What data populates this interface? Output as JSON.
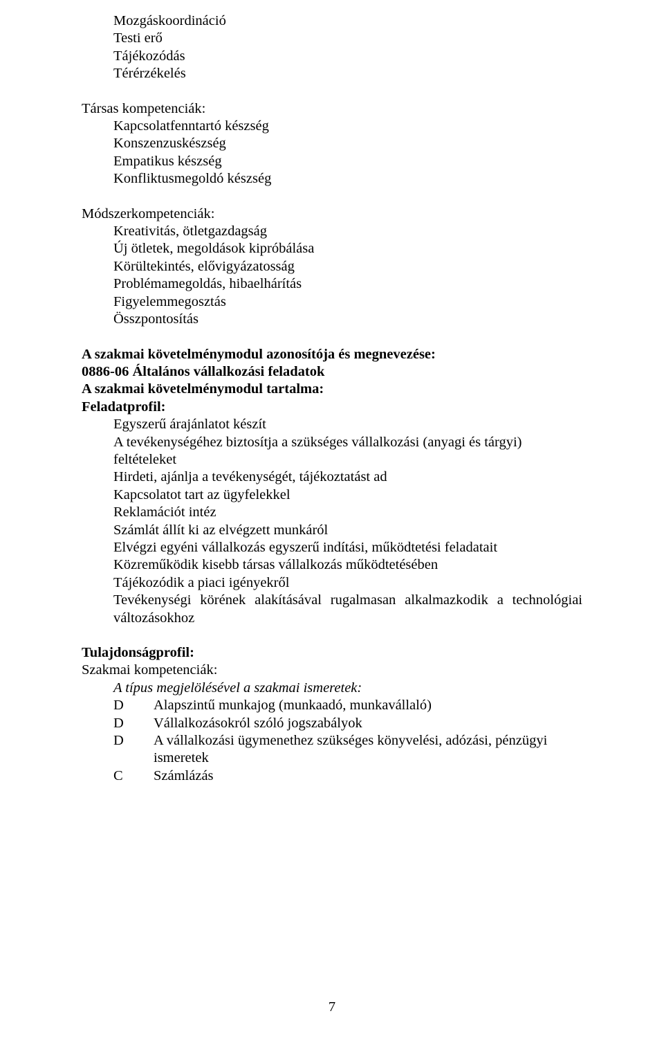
{
  "fonts": {
    "family": "Times New Roman",
    "body_size_pt": 15,
    "color": "#000000",
    "background": "#ffffff"
  },
  "top_list": [
    "Mozgáskoordináció",
    "Testi erő",
    "Tájékozódás",
    "Térérzékelés"
  ],
  "tarsas": {
    "heading": "Társas kompetenciák:",
    "items": [
      "Kapcsolatfenntartó készség",
      "Konszenzuskészség",
      "Empatikus készség",
      "Konfliktusmegoldó készség"
    ]
  },
  "modszer": {
    "heading": "Módszerkompetenciák:",
    "items": [
      "Kreativitás, ötletgazdagság",
      "Új ötletek, megoldások kipróbálása",
      "Körültekintés, elővigyázatosság",
      "Problémamegoldás, hibaelhárítás",
      "Figyelemmegosztás",
      "Összpontosítás"
    ]
  },
  "modul": {
    "line1": "A szakmai követelménymodul azonosítója és megnevezése:",
    "line2": "0886-06  Általános vállalkozási feladatok",
    "line3": "A szakmai követelménymodul tartalma:",
    "feladatprofil_heading": "Feladatprofil:",
    "feladatprofil_items": [
      "Egyszerű árajánlatot készít",
      "A tevékenységéhez biztosítja a szükséges vállalkozási (anyagi és tárgyi) feltételeket",
      "Hirdeti, ajánlja a tevékenységét, tájékoztatást ad",
      "Kapcsolatot tart az ügyfelekkel",
      "Reklamációt intéz",
      "Számlát állít ki az elvégzett munkáról",
      "Elvégzi egyéni vállalkozás egyszerű indítási, működtetési feladatait",
      "Közreműködik kisebb társas vállalkozás működtetésében",
      "Tájékozódik a piaci igényekről",
      "Tevékenységi körének alakításával rugalmasan alkalmazkodik a technológiai változásokhoz"
    ]
  },
  "tulajdonsag": {
    "heading": "Tulajdonságprofil:",
    "szakmai_heading": "Szakmai kompetenciák:",
    "ismeretek_heading": "A típus megjelölésével a szakmai ismeretek:",
    "rows": [
      {
        "letter": "D",
        "text": "Alapszintű munkajog (munkaadó, munkavállaló)"
      },
      {
        "letter": "D",
        "text": "Vállalkozásokról szóló jogszabályok"
      },
      {
        "letter": "D",
        "text": "A vállalkozási ügymenethez szükséges könyvelési, adózási, pénzügyi ismeretek"
      },
      {
        "letter": "C",
        "text": "Számlázás"
      }
    ]
  },
  "page_number": "7"
}
